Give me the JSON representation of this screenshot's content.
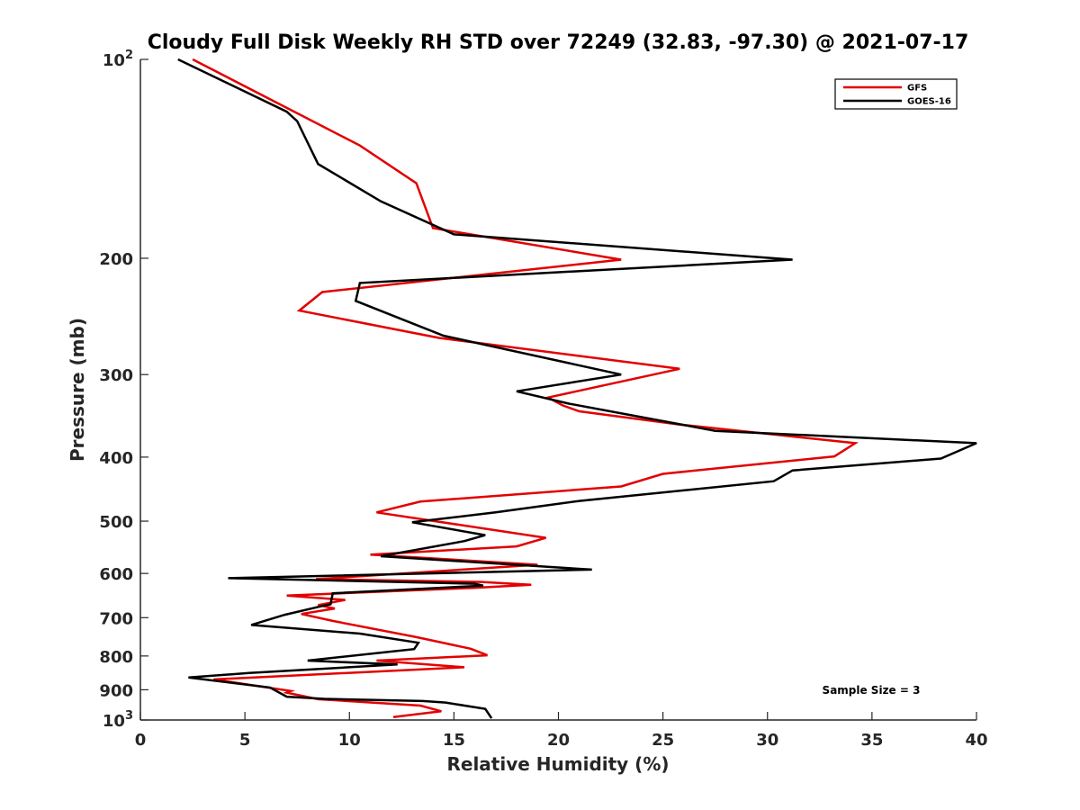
{
  "chart_data": {
    "type": "line",
    "title": "Cloudy Full Disk Weekly RH STD over 72249 (32.83, -97.30) @ 2021-07-17",
    "xlabel": "Relative Humidity (%)",
    "ylabel": "Pressure (mb)",
    "xlim": [
      0,
      40
    ],
    "ylim": [
      100,
      1000
    ],
    "y_scale": "log",
    "y_reversed": true,
    "grid": false,
    "legend_position": "top-right",
    "annotation": "Sample Size = 3",
    "x_ticks": [
      {
        "value": 0,
        "label": "0"
      },
      {
        "value": 5,
        "label": "5"
      },
      {
        "value": 10,
        "label": "10"
      },
      {
        "value": 15,
        "label": "15"
      },
      {
        "value": 20,
        "label": "20"
      },
      {
        "value": 25,
        "label": "25"
      },
      {
        "value": 30,
        "label": "30"
      },
      {
        "value": 35,
        "label": "35"
      },
      {
        "value": 40,
        "label": "40"
      }
    ],
    "y_ticks": [
      {
        "value": 100,
        "base": "10",
        "exp": "2"
      },
      {
        "value": 200,
        "base": "200",
        "exp": ""
      },
      {
        "value": 300,
        "base": "300",
        "exp": ""
      },
      {
        "value": 400,
        "base": "400",
        "exp": ""
      },
      {
        "value": 500,
        "base": "500",
        "exp": ""
      },
      {
        "value": 600,
        "base": "600",
        "exp": ""
      },
      {
        "value": 700,
        "base": "700",
        "exp": ""
      },
      {
        "value": 800,
        "base": "800",
        "exp": ""
      },
      {
        "value": 900,
        "base": "900",
        "exp": ""
      },
      {
        "value": 1000,
        "base": "10",
        "exp": "3"
      }
    ],
    "series": [
      {
        "name": "GFS",
        "color": "#e30000",
        "points": [
          [
            2.5,
            100
          ],
          [
            10.5,
            135
          ],
          [
            13.2,
            154
          ],
          [
            14.0,
            180
          ],
          [
            23.0,
            201
          ],
          [
            8.7,
            225
          ],
          [
            7.6,
            240
          ],
          [
            14.3,
            264
          ],
          [
            25.8,
            294
          ],
          [
            19.5,
            325
          ],
          [
            20.2,
            334
          ],
          [
            21.0,
            341
          ],
          [
            25.8,
            357
          ],
          [
            34.2,
            381
          ],
          [
            33.2,
            399
          ],
          [
            25.0,
            424
          ],
          [
            23.0,
            443
          ],
          [
            13.4,
            467
          ],
          [
            11.3,
            485
          ],
          [
            19.4,
            530
          ],
          [
            18.0,
            546
          ],
          [
            11.0,
            562
          ],
          [
            19.0,
            582
          ],
          [
            8.4,
            612
          ],
          [
            16.3,
            618
          ],
          [
            18.7,
            624
          ],
          [
            15.9,
            631
          ],
          [
            7.0,
            648
          ],
          [
            9.8,
            658
          ],
          [
            8.5,
            670
          ],
          [
            9.3,
            678
          ],
          [
            7.7,
            691
          ],
          [
            9.2,
            708
          ],
          [
            13.2,
            749
          ],
          [
            15.8,
            780
          ],
          [
            16.6,
            798
          ],
          [
            11.3,
            813
          ],
          [
            15.5,
            832
          ],
          [
            3.5,
            868
          ],
          [
            7.2,
            904
          ],
          [
            7.0,
            909
          ],
          [
            8.5,
            930
          ],
          [
            13.4,
            951
          ],
          [
            14.4,
            970
          ],
          [
            12.1,
            990
          ]
        ]
      },
      {
        "name": "GOES-16",
        "color": "#000000",
        "points": [
          [
            1.8,
            100
          ],
          [
            7.0,
            120
          ],
          [
            7.5,
            124
          ],
          [
            8.5,
            144
          ],
          [
            11.5,
            164
          ],
          [
            15.0,
            184
          ],
          [
            31.2,
            201
          ],
          [
            10.5,
            218
          ],
          [
            10.3,
            232
          ],
          [
            14.5,
            262
          ],
          [
            23.0,
            300
          ],
          [
            18.0,
            318
          ],
          [
            20.5,
            332
          ],
          [
            27.5,
            365
          ],
          [
            40.0,
            381
          ],
          [
            38.3,
            402
          ],
          [
            31.2,
            419
          ],
          [
            30.3,
            435
          ],
          [
            21.0,
            466
          ],
          [
            17.0,
            485
          ],
          [
            13.0,
            502
          ],
          [
            16.5,
            525
          ],
          [
            15.5,
            536
          ],
          [
            11.5,
            565
          ],
          [
            21.6,
            592
          ],
          [
            4.2,
            610
          ],
          [
            16.0,
            622
          ],
          [
            16.4,
            626
          ],
          [
            9.2,
            643
          ],
          [
            9.1,
            668
          ],
          [
            8.7,
            672
          ],
          [
            6.9,
            693
          ],
          [
            5.3,
            718
          ],
          [
            10.5,
            740
          ],
          [
            13.3,
            764
          ],
          [
            13.1,
            781
          ],
          [
            8.0,
            813
          ],
          [
            12.3,
            824
          ],
          [
            5.2,
            849
          ],
          [
            2.3,
            862
          ],
          [
            6.2,
            893
          ],
          [
            7.0,
            922
          ],
          [
            8.8,
            929
          ],
          [
            13.5,
            936
          ],
          [
            14.6,
            941
          ],
          [
            16.5,
            962
          ],
          [
            16.8,
            994
          ]
        ]
      }
    ]
  }
}
